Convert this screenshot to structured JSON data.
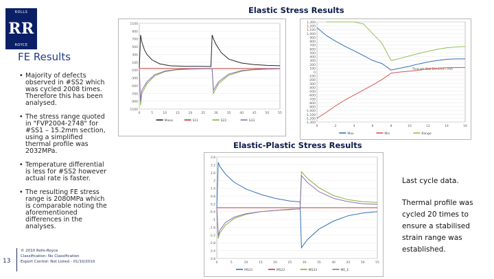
{
  "logo": {
    "top": "ROLLS",
    "mark": "RR",
    "bottom": "ROYCE"
  },
  "section_title": "FE Results",
  "bullets": [
    "Majority of defects observed in #SS2 which was cycled 2008 times. Therefore this has been analysed.",
    "The stress range quoted in \"FVP2004-2748\" for #SS1 – 15.2mm section, using a simplified thermal profile was 2032MPa.",
    "Temperature differential is less for #SS2 however actual rate is faster.",
    "The resulting FE stress range is 2080MPa which is comparable noting the aforementioned differences in the analyses."
  ],
  "footer": {
    "page_number": "13",
    "lines": [
      "© 2010 Rolls-Royce",
      "Classification: No Classification",
      "Export Control: Not Listed - 01/10/2010"
    ]
  },
  "titles": {
    "elastic": "Elastic Stress Results",
    "elastic_plastic": "Elastic-Plastic Stress Results"
  },
  "notes": {
    "note1": "Last cycle data.",
    "note2": "Thermal profile was cycled 20 times to ensure a stabilised strain range was established."
  },
  "chart_data": [
    {
      "type": "line",
      "title": "",
      "ylim": [
        -1100,
        1100
      ],
      "xlim": [
        0,
        55
      ],
      "y_ticks": [
        "1100",
        "900",
        "700",
        "500",
        "300",
        "100",
        "-100",
        "-300",
        "-500",
        "-700",
        "-900",
        "-1100"
      ],
      "x_ticks": [
        "0",
        "5",
        "10",
        "15",
        "20",
        "25",
        "30",
        "35",
        "40",
        "45",
        "50",
        "55"
      ],
      "series": [
        {
          "name": "Mises",
          "color": "#222222",
          "x": [
            0,
            0.5,
            1,
            2,
            3,
            5,
            8,
            12,
            18,
            24,
            27,
            28,
            28.5,
            29,
            30,
            32,
            35,
            40,
            45,
            50,
            55
          ],
          "y": [
            -50,
            800,
            620,
            420,
            300,
            160,
            60,
            10,
            -5,
            -5,
            -8,
            -10,
            800,
            700,
            560,
            350,
            180,
            80,
            40,
            20,
            10
          ]
        },
        {
          "name": "S11",
          "color": "#c0392b",
          "x": [
            0,
            1,
            5,
            10,
            20,
            28,
            29,
            35,
            45,
            55
          ],
          "y": [
            -60,
            -60,
            -60,
            -62,
            -62,
            -62,
            -62,
            -62,
            -62,
            -62
          ]
        },
        {
          "name": "S22",
          "color": "#7fb13b",
          "x": [
            0,
            0.5,
            1,
            3,
            6,
            10,
            15,
            20,
            25,
            28,
            28.5,
            29,
            31,
            35,
            40,
            45,
            50,
            55
          ],
          "y": [
            -60,
            -1000,
            -700,
            -450,
            -250,
            -140,
            -90,
            -75,
            -70,
            -68,
            -68,
            -700,
            -450,
            -230,
            -130,
            -90,
            -75,
            -70
          ]
        },
        {
          "name": "S33",
          "color": "#8e6bb8",
          "x": [
            0,
            0.5,
            1,
            3,
            6,
            10,
            15,
            20,
            25,
            28,
            28.5,
            29,
            31,
            35,
            40,
            45,
            50,
            55
          ],
          "y": [
            -60,
            -900,
            -620,
            -400,
            -220,
            -125,
            -85,
            -72,
            -68,
            -66,
            -66,
            -620,
            -400,
            -200,
            -115,
            -85,
            -72,
            -68
          ]
        }
      ]
    },
    {
      "type": "line",
      "title": "",
      "xlabel": "Through Wall Distance / mm",
      "ylim": [
        -1300,
        1300
      ],
      "xlim": [
        0,
        16
      ],
      "y_ticks": [
        "1,300",
        "1,200",
        "1,100",
        "1,000",
        "900",
        "800",
        "700",
        "600",
        "500",
        "400",
        "300",
        "200",
        "100",
        "0",
        "-100",
        "-200",
        "-300",
        "-400",
        "-500",
        "-600",
        "-700",
        "-800",
        "-900",
        "-1,000",
        "-1,100",
        "-1,200",
        "-1,300"
      ],
      "x_ticks": [
        "0",
        "2",
        "4",
        "6",
        "8",
        "10",
        "12",
        "14",
        "16"
      ],
      "series": [
        {
          "name": "Max",
          "color": "#2f6fb5",
          "x": [
            0,
            1,
            2,
            3,
            4,
            5,
            6,
            7,
            8,
            9,
            10,
            11,
            12,
            13,
            14,
            15,
            16
          ],
          "y": [
            1150,
            950,
            800,
            670,
            550,
            430,
            300,
            220,
            50,
            100,
            150,
            210,
            260,
            300,
            330,
            340,
            340
          ]
        },
        {
          "name": "Min",
          "color": "#d9534f",
          "x": [
            0,
            1,
            2,
            3,
            4,
            5,
            6,
            7,
            8,
            9,
            10,
            11,
            12,
            13,
            14,
            15,
            16
          ],
          "y": [
            -1200,
            -1050,
            -880,
            -730,
            -600,
            -470,
            -340,
            -200,
            -30,
            0,
            20,
            50,
            80,
            100,
            110,
            115,
            118
          ]
        },
        {
          "name": "Range",
          "color": "#8fbf4d",
          "x": [
            1,
            2,
            3,
            4,
            5,
            6,
            7,
            8,
            9,
            10,
            11,
            12,
            13,
            14,
            15,
            16
          ],
          "y": [
            1300,
            1300,
            1300,
            1300,
            1250,
            1000,
            750,
            300,
            350,
            420,
            480,
            540,
            590,
            630,
            650,
            660
          ]
        }
      ]
    },
    {
      "type": "line",
      "title": "",
      "ylim": [
        -3.8,
        3.8
      ],
      "xlim": [
        0,
        55
      ],
      "y_ticks": [
        "3.8",
        "3.2",
        "2.6",
        "2",
        "1.4",
        "0.8",
        "0.2",
        "-0.4",
        "-1",
        "-1.6",
        "-2.2",
        "-2.8",
        "-3.4",
        "-3.8"
      ],
      "x_ticks": [
        "0",
        "5",
        "10",
        "15",
        "20",
        "25",
        "30",
        "35",
        "40",
        "45",
        "50",
        "55"
      ],
      "series": [
        {
          "name": "MS11",
          "color": "#2f6fb5",
          "x": [
            0,
            0.5,
            1,
            3,
            6,
            10,
            15,
            20,
            25,
            28,
            28.5,
            29,
            31,
            35,
            40,
            45,
            50,
            55
          ],
          "y": [
            0,
            3.4,
            3.1,
            2.5,
            1.9,
            1.4,
            1.0,
            0.7,
            0.5,
            0.45,
            0.45,
            -3.0,
            -2.4,
            -1.6,
            -1.0,
            -0.6,
            -0.4,
            -0.3
          ]
        },
        {
          "name": "MS22",
          "color": "#c0392b",
          "x": [
            0,
            1,
            5,
            10,
            20,
            28,
            29,
            35,
            45,
            55
          ],
          "y": [
            0.0,
            0.0,
            0.0,
            0.0,
            0.0,
            0.0,
            0.0,
            0.0,
            0.0,
            0.0
          ]
        },
        {
          "name": "MS33",
          "color": "#7fb13b",
          "x": [
            0,
            0.5,
            1,
            3,
            6,
            10,
            15,
            20,
            25,
            28,
            28.5,
            29,
            31,
            35,
            40,
            45,
            50,
            55
          ],
          "y": [
            0,
            -2.3,
            -1.9,
            -1.3,
            -0.8,
            -0.5,
            -0.3,
            -0.2,
            -0.15,
            -0.1,
            -0.1,
            2.7,
            2.2,
            1.5,
            0.9,
            0.6,
            0.45,
            0.4
          ]
        },
        {
          "name": "ME_E",
          "color": "#8e6bb8",
          "x": [
            0,
            0.5,
            1,
            3,
            6,
            10,
            15,
            20,
            25,
            28,
            28.5,
            29,
            31,
            35,
            40,
            45,
            50,
            55
          ],
          "y": [
            0,
            -2.1,
            -1.7,
            -1.1,
            -0.7,
            -0.45,
            -0.3,
            -0.2,
            -0.12,
            -0.1,
            -0.1,
            2.4,
            1.9,
            1.2,
            0.7,
            0.45,
            0.3,
            0.25
          ]
        }
      ]
    }
  ]
}
